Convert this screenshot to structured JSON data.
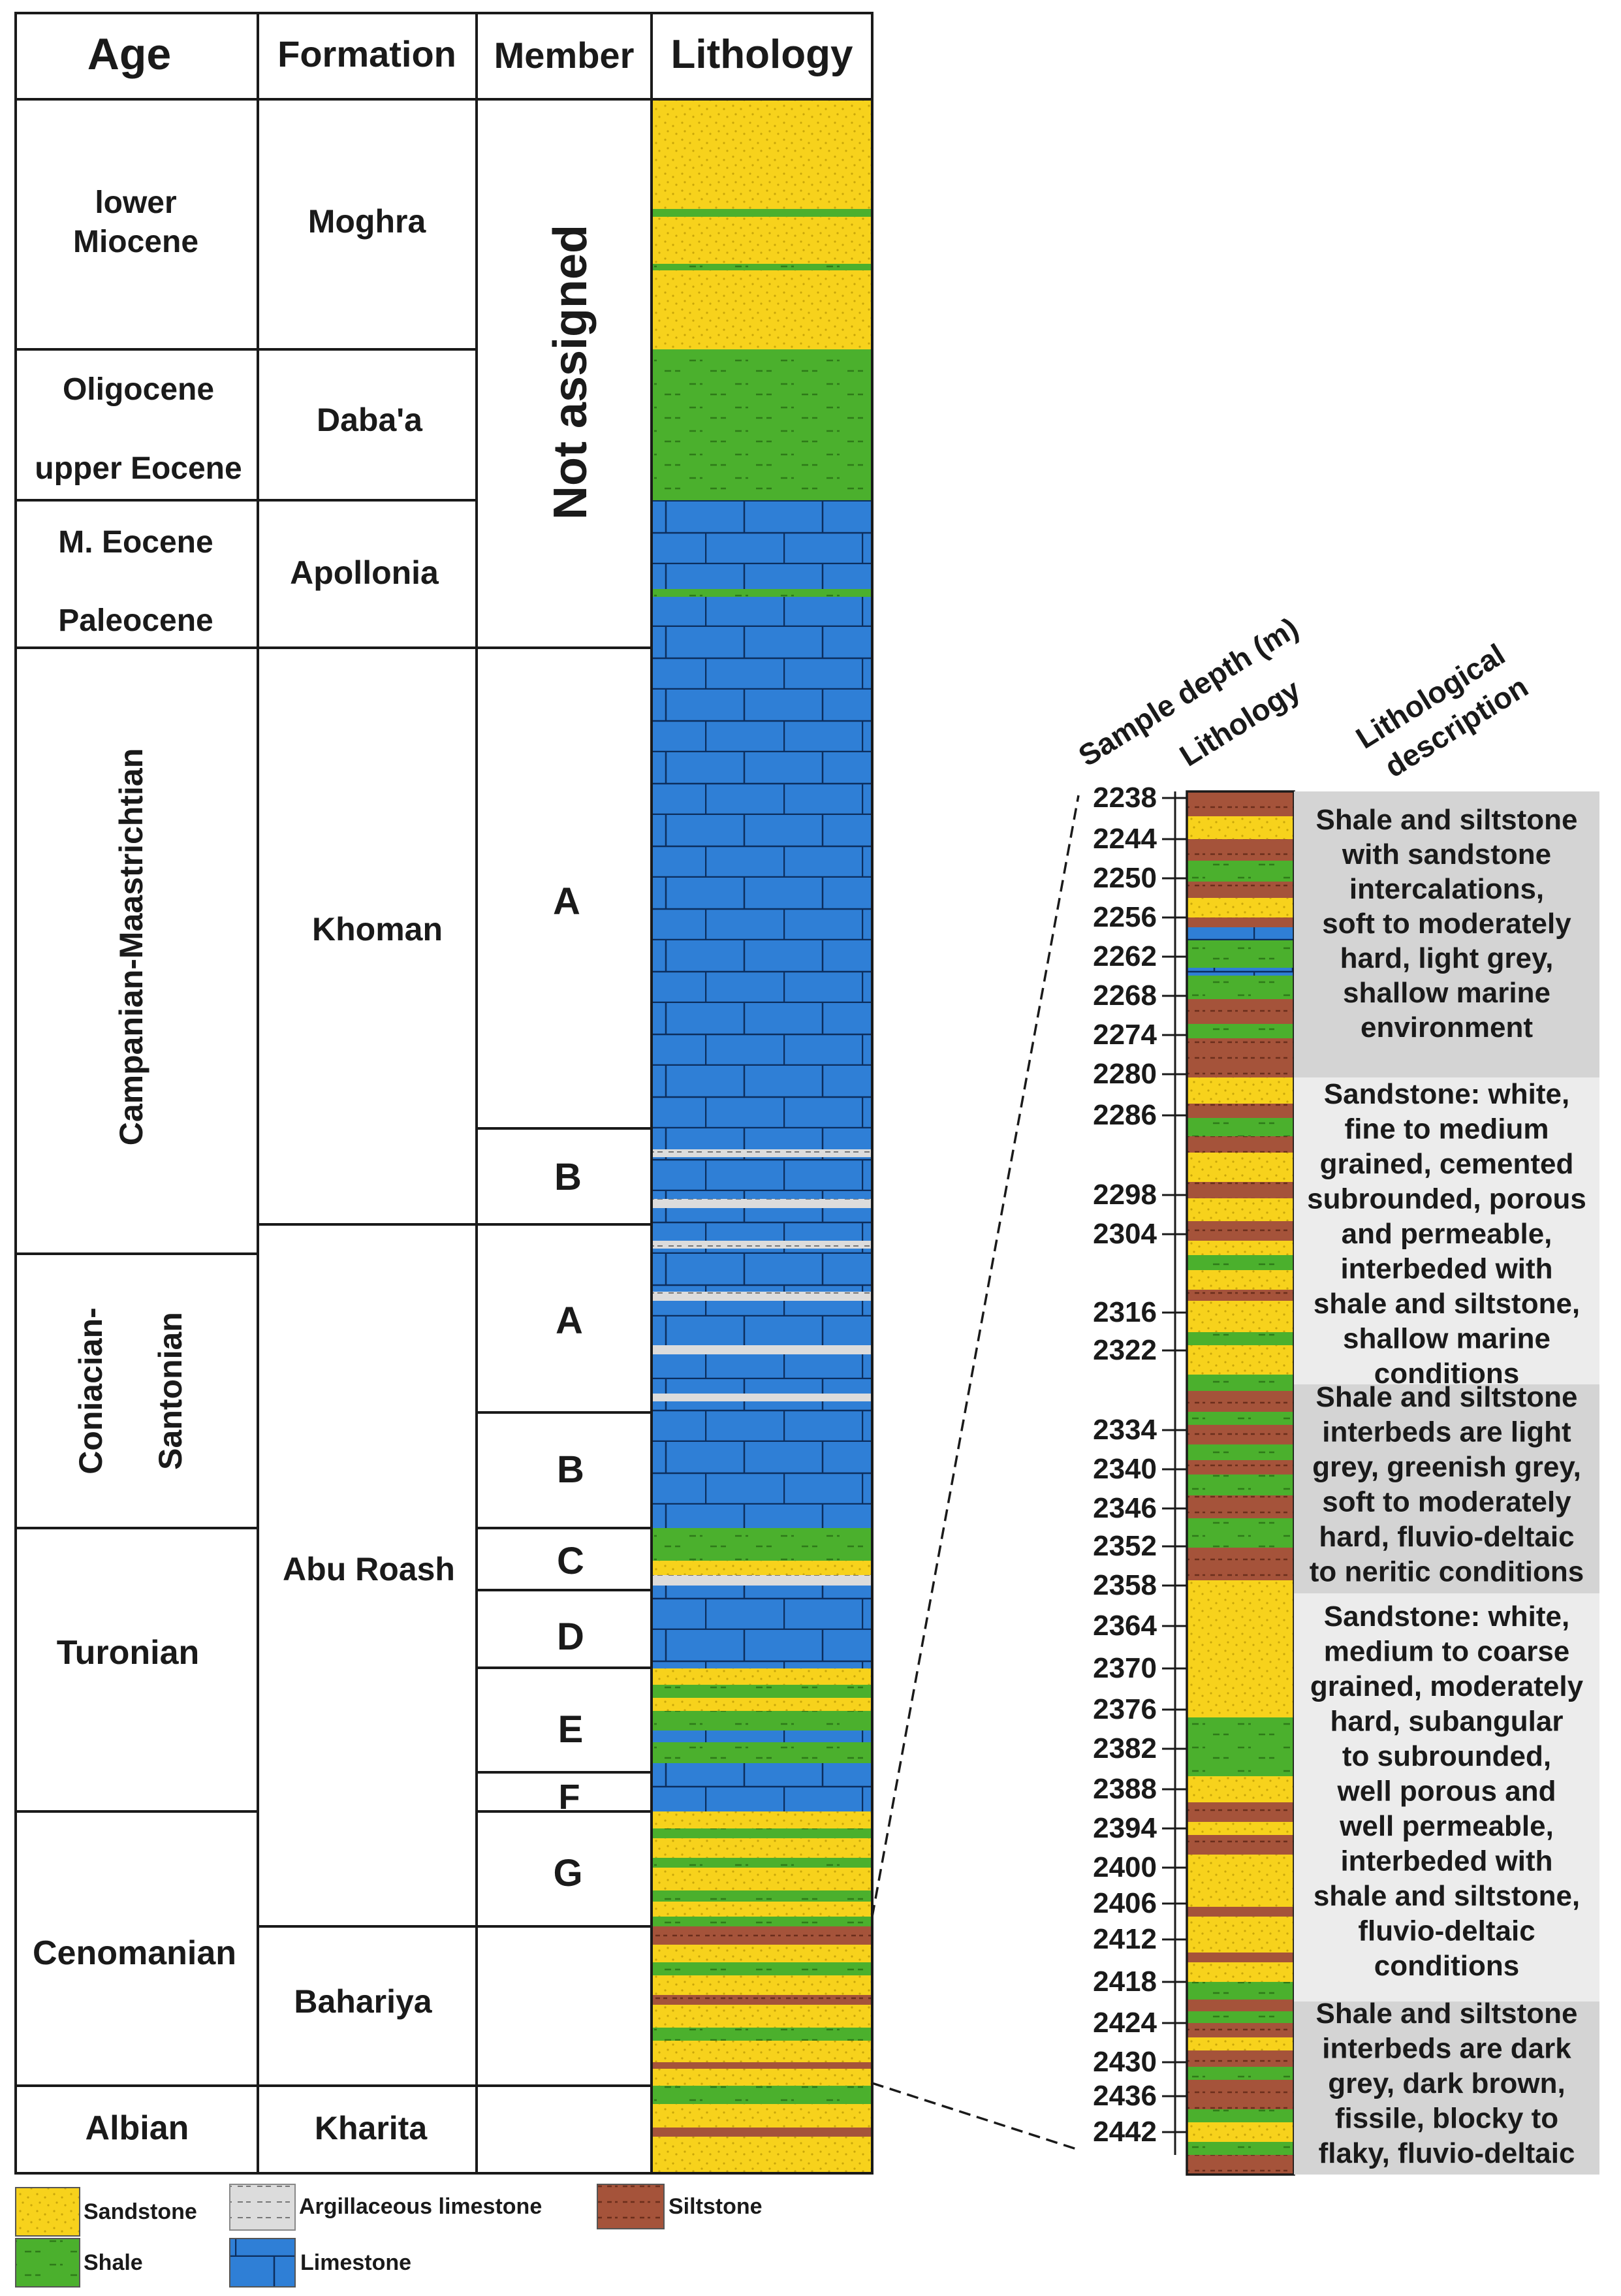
{
  "headers": {
    "age": "Age",
    "formation": "Formation",
    "member": "Member",
    "lithology": "Lithology"
  },
  "ages": [
    {
      "id": "lower-miocene",
      "lines": [
        "lower",
        "Miocene"
      ]
    },
    {
      "id": "oligocene",
      "lines": [
        "Oligocene"
      ]
    },
    {
      "id": "upper-eocene",
      "lines": [
        "upper Eocene"
      ]
    },
    {
      "id": "m-eocene",
      "lines": [
        "M. Eocene"
      ]
    },
    {
      "id": "paleocene",
      "lines": [
        "Paleocene"
      ]
    },
    {
      "id": "campanian-maastrichtian",
      "lines": [
        "Campanian-Maastrichtian"
      ]
    },
    {
      "id": "coniacian-santonian",
      "lines": [
        "Coniacian-",
        "Santonian"
      ]
    },
    {
      "id": "turonian",
      "lines": [
        "Turonian"
      ]
    },
    {
      "id": "cenomanian",
      "lines": [
        "Cenomanian"
      ]
    },
    {
      "id": "albian",
      "lines": [
        "Albian"
      ]
    }
  ],
  "formations": [
    "Moghra",
    "Daba'a",
    "Apollonia",
    "Khoman",
    "Abu Roash",
    "Bahariya",
    "Kharita"
  ],
  "members": {
    "not_assigned": "Not assigned",
    "labels": [
      "A",
      "B",
      "A",
      "B",
      "C",
      "D",
      "E",
      "F",
      "G"
    ]
  },
  "detail": {
    "headers": {
      "depth": "Sample depth (m)",
      "lithology": "Lithology",
      "description_lines": [
        "Lithological",
        "description"
      ]
    },
    "depths": [
      2238,
      2244,
      2250,
      2256,
      2262,
      2268,
      2274,
      2280,
      2286,
      2298,
      2304,
      2316,
      2322,
      2334,
      2340,
      2346,
      2352,
      2358,
      2364,
      2370,
      2376,
      2382,
      2388,
      2394,
      2400,
      2406,
      2412,
      2418,
      2424,
      2430,
      2436,
      2442
    ],
    "descriptions": [
      {
        "id": "d1",
        "lines": [
          "Shale and siltstone",
          "with sandstone",
          "intercalations,",
          "soft to moderately",
          "hard, light grey,",
          "shallow marine",
          "environment"
        ]
      },
      {
        "id": "d2",
        "lines": [
          "Sandstone: white,",
          "fine to medium",
          "grained, cemented",
          "subrounded, porous",
          "and permeable,",
          "interbeded with",
          "shale and siltstone,",
          "shallow marine",
          "conditions"
        ]
      },
      {
        "id": "d3",
        "lines": [
          "Shale and siltstone",
          "interbeds are light",
          "grey, greenish grey,",
          "soft to moderately",
          "hard, fluvio-deltaic",
          "to neritic conditions"
        ]
      },
      {
        "id": "d4",
        "lines": [
          "Sandstone: white,",
          "medium to coarse",
          "grained, moderately",
          "hard, subangular",
          "to subrounded,",
          "well porous and",
          "well permeable,",
          "interbeded with",
          "shale and siltstone,",
          "fluvio-deltaic",
          "conditions"
        ]
      },
      {
        "id": "d5",
        "lines": [
          "Shale and siltstone",
          "interbeds are dark",
          "grey, dark brown,",
          "fissile, blocky to",
          "flaky, fluvio-deltaic"
        ]
      }
    ]
  },
  "legend": [
    {
      "id": "sandstone",
      "label": "Sandstone"
    },
    {
      "id": "argillaceous-limestone",
      "label": "Argillaceous limestone"
    },
    {
      "id": "siltstone",
      "label": "Siltstone"
    },
    {
      "id": "shale",
      "label": "Shale"
    },
    {
      "id": "limestone",
      "label": "Limestone"
    }
  ],
  "colors": {
    "sandstone": "#f7d21c",
    "shale": "#4bb02d",
    "limestone": "#2f7fd6",
    "siltstone": "#a5533a",
    "argillaceous": "#d8d8d8",
    "desc_shade": "#d4d4d4",
    "desc_light": "#ececec"
  }
}
